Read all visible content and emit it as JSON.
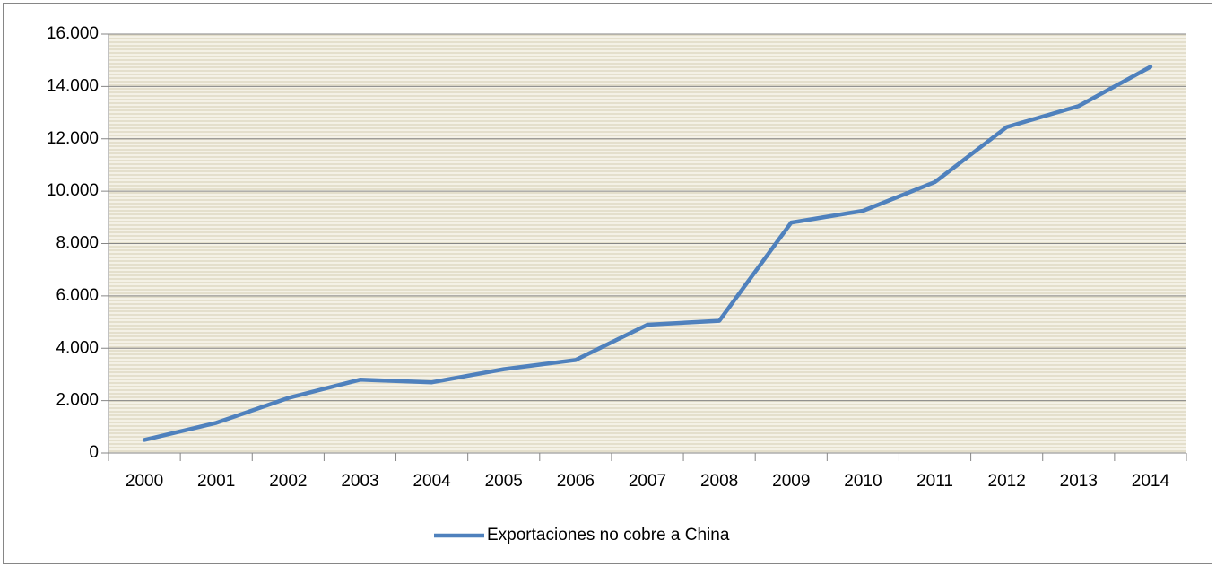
{
  "chart_data": {
    "type": "line",
    "categories": [
      "2000",
      "2001",
      "2002",
      "2003",
      "2004",
      "2005",
      "2006",
      "2007",
      "2008",
      "2009",
      "2010",
      "2011",
      "2012",
      "2013",
      "2014"
    ],
    "series": [
      {
        "name": "Exportaciones no cobre a China",
        "color": "#4f81bd",
        "values": [
          500,
          1150,
          2100,
          2800,
          2700,
          3200,
          3550,
          4900,
          5050,
          8800,
          9250,
          10350,
          12450,
          13250,
          14750
        ]
      }
    ],
    "ylim": [
      0,
      16000
    ],
    "yticks": [
      0,
      {
        "value": 2000,
        "label": "2.000"
      },
      {
        "value": 4000,
        "label": "4.000"
      },
      {
        "value": 6000,
        "label": "6.000"
      },
      {
        "value": 8000,
        "label": "8.000"
      },
      {
        "value": 10000,
        "label": "10.000"
      },
      {
        "value": 12000,
        "label": "12.000"
      },
      {
        "value": 14000,
        "label": "14.000"
      },
      {
        "value": 16000,
        "label": "16.000"
      }
    ],
    "grid": true,
    "legend": "bottom"
  }
}
